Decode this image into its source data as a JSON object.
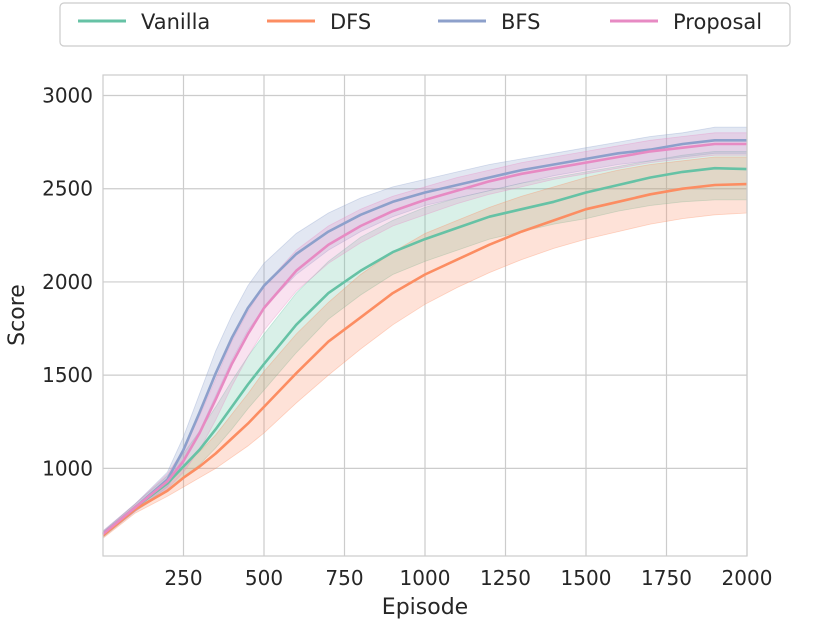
{
  "chart_data": {
    "type": "line",
    "title": "",
    "xlabel": "Episode",
    "ylabel": "Score",
    "xlim": [
      0,
      2000
    ],
    "ylim": [
      530,
      3110
    ],
    "x_ticks": [
      250,
      500,
      750,
      1000,
      1250,
      1500,
      1750,
      2000
    ],
    "y_ticks": [
      1000,
      1500,
      2000,
      2500,
      3000
    ],
    "grid": true,
    "legend_position": "top",
    "x": [
      0,
      100,
      200,
      250,
      300,
      350,
      400,
      450,
      500,
      600,
      700,
      800,
      900,
      1000,
      1100,
      1200,
      1300,
      1400,
      1500,
      1600,
      1700,
      1800,
      1900,
      2000
    ],
    "series": [
      {
        "name": "Vanilla",
        "color": "#66c2a5",
        "values": [
          645,
          790,
          920,
          1010,
          1100,
          1210,
          1330,
          1450,
          1560,
          1770,
          1940,
          2060,
          2160,
          2230,
          2290,
          2350,
          2390,
          2430,
          2480,
          2520,
          2560,
          2590,
          2610,
          2605
        ],
        "lower": [
          630,
          770,
          880,
          950,
          1020,
          1110,
          1210,
          1320,
          1420,
          1620,
          1800,
          1930,
          2040,
          2110,
          2170,
          2230,
          2270,
          2310,
          2340,
          2380,
          2410,
          2430,
          2440,
          2440
        ],
        "upper": [
          660,
          810,
          960,
          1080,
          1200,
          1330,
          1470,
          1600,
          1720,
          1940,
          2110,
          2240,
          2330,
          2400,
          2450,
          2490,
          2530,
          2560,
          2590,
          2620,
          2650,
          2680,
          2700,
          2700
        ]
      },
      {
        "name": "DFS",
        "color": "#fc8d62",
        "values": [
          640,
          780,
          880,
          950,
          1010,
          1080,
          1160,
          1240,
          1330,
          1510,
          1680,
          1810,
          1940,
          2040,
          2120,
          2200,
          2270,
          2330,
          2390,
          2430,
          2470,
          2500,
          2520,
          2525
        ],
        "lower": [
          625,
          760,
          850,
          900,
          950,
          1000,
          1060,
          1120,
          1190,
          1350,
          1500,
          1640,
          1770,
          1880,
          1970,
          2050,
          2120,
          2180,
          2230,
          2270,
          2310,
          2340,
          2360,
          2370
        ],
        "upper": [
          655,
          800,
          920,
          1010,
          1090,
          1180,
          1290,
          1400,
          1520,
          1720,
          1890,
          2040,
          2160,
          2260,
          2330,
          2400,
          2460,
          2510,
          2560,
          2600,
          2630,
          2650,
          2670,
          2670
        ]
      },
      {
        "name": "BFS",
        "color": "#8da0cb",
        "values": [
          650,
          790,
          940,
          1100,
          1300,
          1510,
          1700,
          1860,
          1980,
          2150,
          2270,
          2360,
          2430,
          2480,
          2520,
          2560,
          2600,
          2630,
          2660,
          2690,
          2710,
          2740,
          2760,
          2760
        ],
        "lower": [
          635,
          770,
          900,
          1030,
          1200,
          1390,
          1580,
          1740,
          1860,
          2040,
          2170,
          2270,
          2350,
          2410,
          2450,
          2490,
          2530,
          2570,
          2600,
          2630,
          2650,
          2670,
          2690,
          2690
        ],
        "upper": [
          665,
          810,
          980,
          1170,
          1400,
          1630,
          1820,
          1980,
          2100,
          2260,
          2370,
          2450,
          2510,
          2550,
          2590,
          2630,
          2660,
          2690,
          2720,
          2750,
          2780,
          2800,
          2830,
          2830
        ]
      },
      {
        "name": "Proposal",
        "color": "#e78ac3",
        "values": [
          648,
          790,
          930,
          1040,
          1190,
          1370,
          1560,
          1720,
          1860,
          2060,
          2200,
          2300,
          2380,
          2440,
          2490,
          2540,
          2580,
          2610,
          2640,
          2670,
          2700,
          2720,
          2740,
          2740
        ],
        "lower": [
          633,
          770,
          890,
          980,
          1100,
          1260,
          1440,
          1600,
          1740,
          1950,
          2100,
          2210,
          2300,
          2360,
          2420,
          2470,
          2510,
          2550,
          2580,
          2610,
          2640,
          2660,
          2680,
          2680
        ],
        "upper": [
          663,
          810,
          970,
          1100,
          1280,
          1480,
          1680,
          1840,
          1980,
          2170,
          2300,
          2390,
          2460,
          2510,
          2560,
          2600,
          2640,
          2670,
          2700,
          2730,
          2760,
          2780,
          2800,
          2800
        ]
      }
    ]
  }
}
